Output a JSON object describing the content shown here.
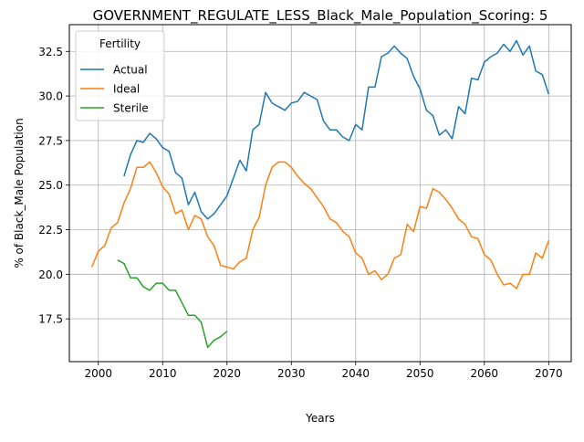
{
  "chart_data": {
    "type": "line",
    "title": "GOVERNMENT_REGULATE_LESS_Black_Male_Population_Scoring: 5",
    "xlabel": "Years",
    "ylabel": "% of Black_Male Population",
    "xlim": [
      1995.5,
      2073.5
    ],
    "ylim": [
      15.1,
      34.0
    ],
    "xticks": [
      2000,
      2010,
      2020,
      2030,
      2040,
      2050,
      2060,
      2070
    ],
    "yticks": [
      17.5,
      20.0,
      22.5,
      25.0,
      27.5,
      30.0,
      32.5
    ],
    "ytick_labels": [
      "17.5",
      "20.0",
      "22.5",
      "25.0",
      "27.5",
      "30.0",
      "32.5"
    ],
    "grid": true,
    "legend": {
      "title": "Fertility",
      "position": "top-left"
    },
    "series": [
      {
        "name": "Actual",
        "color": "#1f77b4",
        "x": [
          2004,
          2005,
          2006,
          2007,
          2008,
          2009,
          2010,
          2011,
          2012,
          2013,
          2014,
          2015,
          2016,
          2017,
          2018,
          2019,
          2020,
          2021,
          2022,
          2023,
          2024,
          2025,
          2026,
          2027,
          2028,
          2029,
          2030,
          2031,
          2032,
          2033,
          2034,
          2035,
          2036,
          2037,
          2038,
          2039,
          2040,
          2041,
          2042,
          2043,
          2044,
          2045,
          2046,
          2047,
          2048,
          2049,
          2050,
          2051,
          2052,
          2053,
          2054,
          2055,
          2056,
          2057,
          2058,
          2059,
          2060,
          2061,
          2062,
          2063,
          2064,
          2065,
          2066,
          2067,
          2068,
          2069,
          2070
        ],
        "values": [
          25.5,
          26.7,
          27.5,
          27.4,
          27.9,
          27.6,
          27.1,
          26.9,
          25.7,
          25.4,
          23.9,
          24.6,
          23.5,
          23.1,
          23.4,
          23.9,
          24.4,
          25.4,
          26.4,
          25.8,
          28.1,
          28.4,
          30.2,
          29.6,
          29.4,
          29.2,
          29.6,
          29.7,
          30.2,
          30.0,
          29.8,
          28.6,
          28.1,
          28.1,
          27.7,
          27.5,
          28.4,
          28.1,
          30.5,
          30.5,
          32.2,
          32.4,
          32.8,
          32.4,
          32.1,
          31.1,
          30.4,
          29.2,
          28.9,
          27.8,
          28.1,
          27.6,
          29.4,
          29.0,
          31.0,
          30.9,
          31.9,
          32.2,
          32.4,
          32.9,
          32.5,
          33.1,
          32.3,
          32.8,
          31.4,
          31.2,
          30.1
        ]
      },
      {
        "name": "Ideal",
        "color": "#ff7f0e",
        "x": [
          1999,
          2000,
          2001,
          2002,
          2003,
          2004,
          2005,
          2006,
          2007,
          2008,
          2009,
          2010,
          2011,
          2012,
          2013,
          2014,
          2015,
          2016,
          2017,
          2018,
          2019,
          2020,
          2021,
          2022,
          2023,
          2024,
          2025,
          2026,
          2027,
          2028,
          2029,
          2030,
          2031,
          2032,
          2033,
          2034,
          2035,
          2036,
          2037,
          2038,
          2039,
          2040,
          2041,
          2042,
          2043,
          2044,
          2045,
          2046,
          2047,
          2048,
          2049,
          2050,
          2051,
          2052,
          2053,
          2054,
          2055,
          2056,
          2057,
          2058,
          2059,
          2060,
          2061,
          2062,
          2063,
          2064,
          2065,
          2066,
          2067,
          2068,
          2069,
          2070
        ],
        "values": [
          20.4,
          21.3,
          21.6,
          22.6,
          22.9,
          24.0,
          24.8,
          26.0,
          26.0,
          26.3,
          25.7,
          24.9,
          24.5,
          23.4,
          23.6,
          22.5,
          23.3,
          23.1,
          22.1,
          21.6,
          20.5,
          20.4,
          20.3,
          20.7,
          20.9,
          22.5,
          23.2,
          25.0,
          26.0,
          26.3,
          26.3,
          26.0,
          25.5,
          25.1,
          24.8,
          24.3,
          23.8,
          23.1,
          22.9,
          22.4,
          22.1,
          21.2,
          20.9,
          20.0,
          20.2,
          19.7,
          20.0,
          20.9,
          21.1,
          22.8,
          22.4,
          23.8,
          23.7,
          24.8,
          24.6,
          24.2,
          23.7,
          23.1,
          22.8,
          22.1,
          22.0,
          21.1,
          20.8,
          20.0,
          19.4,
          19.5,
          19.2,
          20.0,
          20.0,
          21.2,
          20.9,
          21.9
        ]
      },
      {
        "name": "Sterile",
        "color": "#2ca02c",
        "x": [
          2003,
          2004,
          2005,
          2006,
          2007,
          2008,
          2009,
          2010,
          2011,
          2012,
          2013,
          2014,
          2015,
          2016,
          2017,
          2018,
          2019,
          2020
        ],
        "values": [
          20.8,
          20.6,
          19.8,
          19.8,
          19.3,
          19.1,
          19.5,
          19.5,
          19.1,
          19.1,
          18.4,
          17.7,
          17.7,
          17.3,
          15.9,
          16.3,
          16.5,
          16.8
        ]
      }
    ]
  }
}
